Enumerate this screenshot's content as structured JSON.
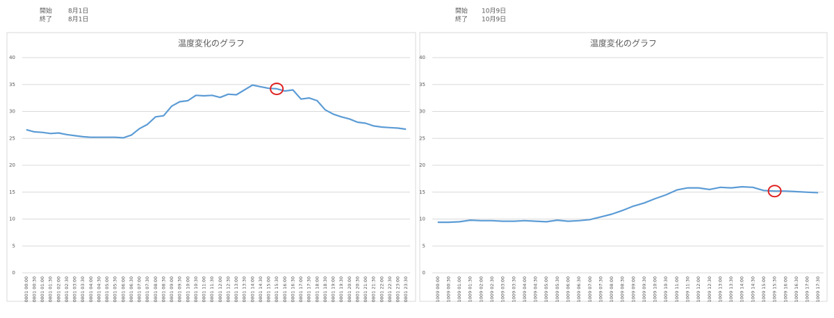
{
  "date_ranges": [
    [
      {
        "label": "開始",
        "value": "8月1日"
      },
      {
        "label": "終了",
        "value": "8月1日"
      }
    ],
    [
      {
        "label": "開始",
        "value": "10月9日"
      },
      {
        "label": "終了",
        "value": "10月9日"
      }
    ]
  ],
  "chart_data": [
    {
      "type": "line",
      "title": "温度変化のグラフ",
      "color": "#5b9bd5",
      "grid": true,
      "ylim": [
        0,
        40
      ],
      "yticks": [
        0,
        5,
        10,
        15,
        20,
        25,
        30,
        35,
        40
      ],
      "highlight": 31,
      "highlight_color": "#e02020",
      "categories": [
        "0801 00:00",
        "0801 00:30",
        "0801 01:00",
        "0801 01:30",
        "0801 02:00",
        "0801 02:30",
        "0801 03:00",
        "0801 03:30",
        "0801 04:00",
        "0801 04:30",
        "0801 05:00",
        "0801 05:30",
        "0801 06:00",
        "0801 06:30",
        "0801 07:00",
        "0801 07:30",
        "0801 08:00",
        "0801 08:30",
        "0801 09:00",
        "0801 09:30",
        "0801 10:00",
        "0801 10:30",
        "0801 11:00",
        "0801 11:30",
        "0801 12:00",
        "0801 12:30",
        "0801 13:00",
        "0801 13:30",
        "0801 14:00",
        "0801 14:30",
        "0801 15:00",
        "0801 15:30",
        "0801 16:00",
        "0801 16:30",
        "0801 17:00",
        "0801 17:30",
        "0801 18:00",
        "0801 18:30",
        "0801 19:00",
        "0801 19:30",
        "0801 20:00",
        "0801 20:30",
        "0801 21:00",
        "0801 21:30",
        "0801 22:00",
        "0801 22:30",
        "0801 23:00",
        "0801 23:30"
      ],
      "values": [
        26.6,
        26.2,
        26.1,
        25.9,
        26.0,
        25.7,
        25.5,
        25.3,
        25.2,
        25.2,
        25.2,
        25.2,
        25.1,
        25.6,
        26.8,
        27.6,
        29.0,
        29.2,
        31.0,
        31.8,
        32.0,
        33.0,
        32.9,
        33.0,
        32.6,
        33.2,
        33.1,
        34.0,
        34.9,
        34.6,
        34.3,
        34.2,
        33.8,
        34.0,
        32.3,
        32.5,
        32.0,
        30.3,
        29.5,
        29.0,
        28.6,
        28.0,
        27.8,
        27.3,
        27.1,
        27.0,
        26.9,
        26.7
      ]
    },
    {
      "type": "line",
      "title": "温度変化のグラフ",
      "color": "#5b9bd5",
      "grid": true,
      "ylim": [
        0,
        40
      ],
      "yticks": [
        0,
        5,
        10,
        15,
        20,
        25,
        30,
        35,
        40
      ],
      "highlight": 31,
      "highlight_color": "#e02020",
      "categories": [
        "1009 00:00",
        "1009 00:30",
        "1009 01:00",
        "1009 01:30",
        "1009 02:00",
        "1009 02:30",
        "1009 03:00",
        "1009 03:30",
        "1009 04:00",
        "1009 04:30",
        "1009 05:00",
        "1009 05:30",
        "1009 06:00",
        "1009 06:30",
        "1009 07:00",
        "1009 07:30",
        "1009 08:00",
        "1009 08:30",
        "1009 09:00",
        "1009 09:30",
        "1009 10:00",
        "1009 10:30",
        "1009 11:00",
        "1009 11:30",
        "1009 12:00",
        "1009 12:30",
        "1009 13:00",
        "1009 13:30",
        "1009 14:00",
        "1009 14:30",
        "1009 15:00",
        "1009 15:30",
        "1009 16:00",
        "1009 16:30",
        "1009 17:00",
        "1009 17:30"
      ],
      "values": [
        9.4,
        9.4,
        9.5,
        9.8,
        9.7,
        9.7,
        9.6,
        9.6,
        9.7,
        9.6,
        9.5,
        9.8,
        9.6,
        9.7,
        9.9,
        10.4,
        10.9,
        11.6,
        12.4,
        13.0,
        13.8,
        14.5,
        15.4,
        15.8,
        15.8,
        15.5,
        15.9,
        15.8,
        16.0,
        15.9,
        15.3,
        15.2,
        15.2,
        15.1,
        15.0,
        14.9
      ]
    }
  ]
}
